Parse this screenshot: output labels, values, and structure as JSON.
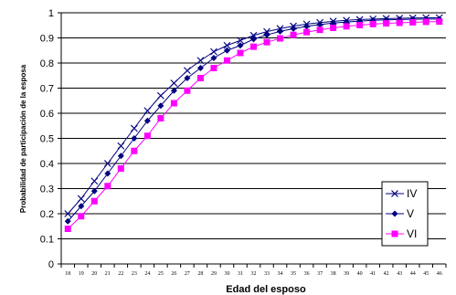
{
  "chart_data": {
    "type": "line",
    "title": "",
    "xlabel": "Edad del esposo",
    "ylabel": "Probabilidad de participación de la esposa",
    "categories": [
      "18",
      "19",
      "20",
      "21",
      "22",
      "23",
      "24",
      "25",
      "26",
      "27",
      "28",
      "29",
      "30",
      "31",
      "32",
      "33",
      "34",
      "35",
      "36",
      "37",
      "38",
      "39",
      "40",
      "41",
      "42",
      "43",
      "44",
      "45",
      "46"
    ],
    "ylim": [
      0,
      1
    ],
    "yticks": [
      "0",
      "0.1",
      "0.2",
      "0.3",
      "0.4",
      "0.5",
      "0.6",
      "0.7",
      "0.8",
      "0.9",
      "1"
    ],
    "grid": "horizontal",
    "legend_position": "bottom-right",
    "series": [
      {
        "name": "IV",
        "marker": "x",
        "color": "#000080",
        "values": [
          0.2,
          0.26,
          0.33,
          0.4,
          0.47,
          0.54,
          0.61,
          0.67,
          0.72,
          0.77,
          0.81,
          0.845,
          0.87,
          0.89,
          0.91,
          0.925,
          0.937,
          0.947,
          0.955,
          0.961,
          0.966,
          0.97,
          0.973,
          0.975,
          0.977,
          0.978,
          0.979,
          0.98,
          0.98
        ]
      },
      {
        "name": "V",
        "marker": "diamond",
        "color": "#000080",
        "values": [
          0.17,
          0.23,
          0.29,
          0.36,
          0.43,
          0.5,
          0.57,
          0.63,
          0.69,
          0.74,
          0.78,
          0.82,
          0.85,
          0.87,
          0.895,
          0.912,
          0.926,
          0.937,
          0.946,
          0.953,
          0.959,
          0.963,
          0.967,
          0.97,
          0.972,
          0.973,
          0.974,
          0.975,
          0.975
        ]
      },
      {
        "name": "VI",
        "marker": "square",
        "color": "#ff00ff",
        "values": [
          0.14,
          0.19,
          0.25,
          0.31,
          0.38,
          0.45,
          0.51,
          0.58,
          0.64,
          0.69,
          0.74,
          0.78,
          0.81,
          0.84,
          0.865,
          0.883,
          0.898,
          0.912,
          0.923,
          0.932,
          0.94,
          0.946,
          0.951,
          0.955,
          0.958,
          0.96,
          0.962,
          0.964,
          0.965
        ]
      }
    ]
  }
}
